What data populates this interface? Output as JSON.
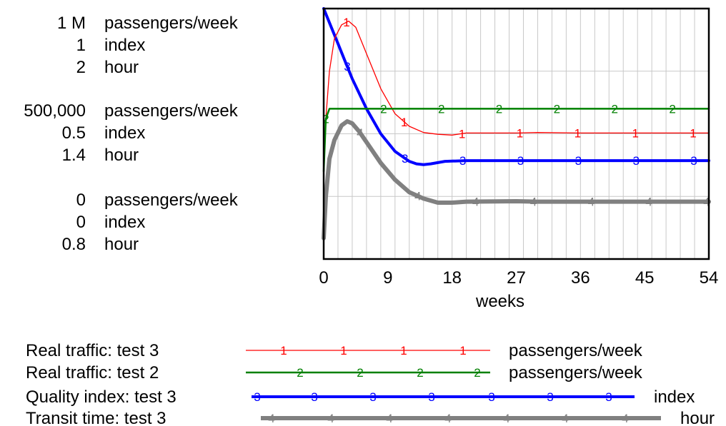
{
  "chart_data": {
    "type": "line",
    "xlabel": "weeks",
    "xlim": [
      0,
      54
    ],
    "x_ticks": [
      "0",
      "9",
      "18",
      "27",
      "36",
      "45",
      "54"
    ],
    "grid": true,
    "y_axes": [
      {
        "unit": "passengers/week",
        "min": 0,
        "max": 1000000,
        "tick_labels": [
          "0",
          "500,000",
          "1 M"
        ]
      },
      {
        "unit": "index",
        "min": 0,
        "max": 1,
        "tick_labels": [
          "0",
          "0.5",
          "1"
        ]
      },
      {
        "unit": "hour",
        "min": 0.8,
        "max": 2,
        "tick_labels": [
          "0.8",
          "1.4",
          "2"
        ]
      }
    ],
    "series": [
      {
        "name": "Real traffic: test 3",
        "marker": "1",
        "unit": "passengers/week",
        "color": "#ff0000",
        "width": 1.3,
        "x": [
          0,
          0.3,
          0.8,
          1.5,
          2.5,
          3.5,
          4.5,
          6,
          8,
          10,
          12,
          14,
          16,
          18,
          20,
          27,
          30,
          36,
          45,
          54
        ],
        "y": [
          350000,
          560000,
          750000,
          880000,
          935000,
          950000,
          925000,
          820000,
          680000,
          580000,
          530000,
          505000,
          498000,
          495000,
          503000,
          503000,
          505000,
          503000,
          503000,
          503000
        ]
      },
      {
        "name": "Real traffic: test 2",
        "marker": "2",
        "unit": "passengers/week",
        "color": "#008000",
        "width": 2.5,
        "x": [
          0,
          0.3,
          0.8,
          54
        ],
        "y": [
          350000,
          560000,
          600000,
          600000
        ]
      },
      {
        "name": "Quality index: test 3",
        "marker": "3",
        "unit": "index",
        "color": "#0000ff",
        "width": 4,
        "x": [
          0,
          1,
          2,
          3,
          4,
          5,
          6,
          8,
          10,
          12,
          13,
          14,
          15,
          17,
          20,
          27,
          30,
          36,
          45,
          54
        ],
        "y": [
          1.0,
          0.93,
          0.86,
          0.79,
          0.72,
          0.66,
          0.6,
          0.5,
          0.43,
          0.39,
          0.38,
          0.377,
          0.38,
          0.39,
          0.393,
          0.393,
          0.393,
          0.393,
          0.393,
          0.393
        ]
      },
      {
        "name": "Transit time: test 3",
        "marker": "4",
        "unit": "hour",
        "color": "#808080",
        "width": 6,
        "x": [
          0,
          0.3,
          0.8,
          1.5,
          2.5,
          3.3,
          4,
          5,
          6,
          8,
          10,
          12,
          14,
          16,
          18,
          20,
          27,
          30,
          36,
          45,
          54
        ],
        "y": [
          0.9,
          1.1,
          1.28,
          1.37,
          1.44,
          1.46,
          1.45,
          1.41,
          1.36,
          1.26,
          1.18,
          1.12,
          1.09,
          1.07,
          1.07,
          1.075,
          1.077,
          1.075,
          1.075,
          1.075,
          1.075
        ]
      }
    ],
    "legend": {
      "placement": "bottom",
      "entries": [
        {
          "label": "Real traffic: test 3",
          "unit": "passengers/week"
        },
        {
          "label": "Real traffic: test 2",
          "unit": "passengers/week"
        },
        {
          "label": "Quality index: test 3",
          "unit": "index"
        },
        {
          "label": "Transit time: test 3",
          "unit": "hour"
        }
      ]
    }
  }
}
